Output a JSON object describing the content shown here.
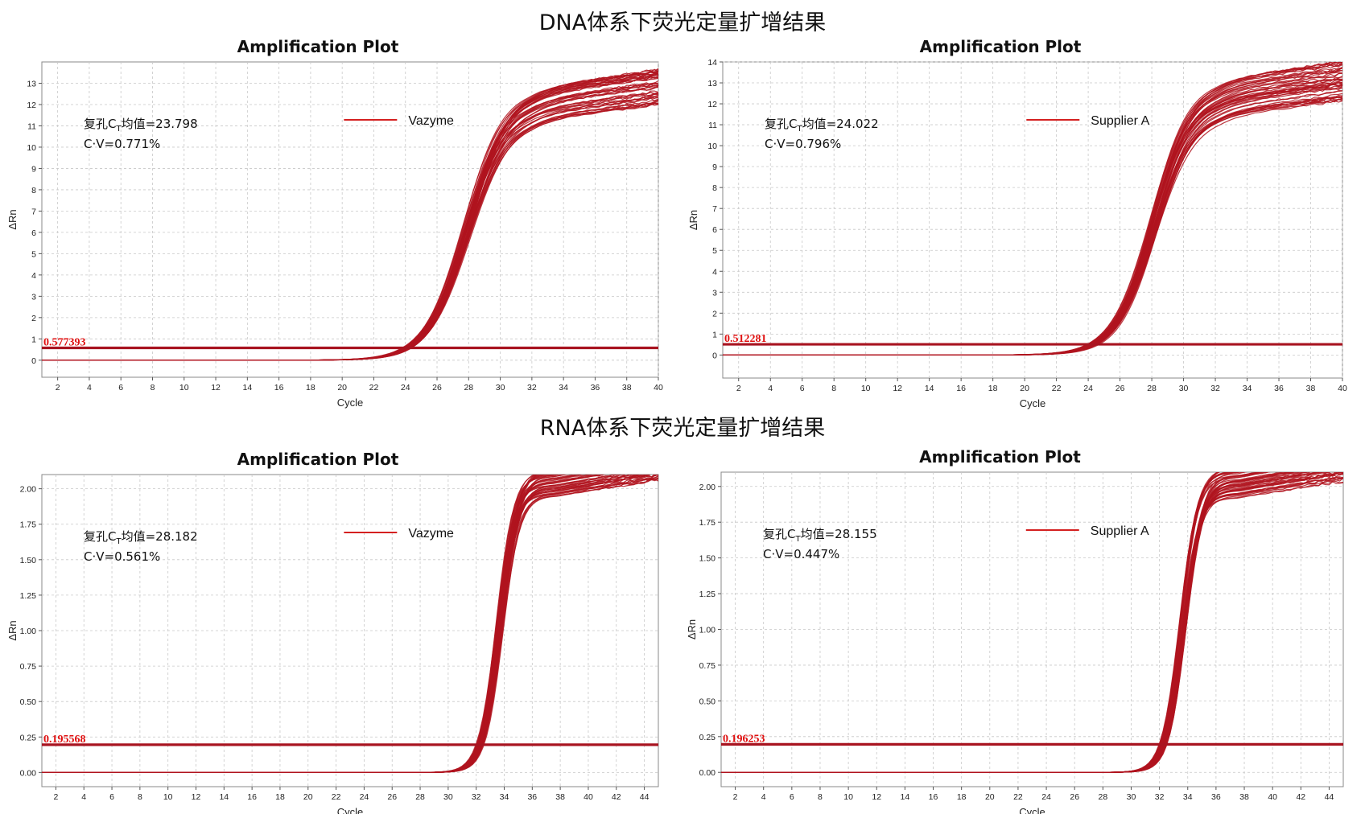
{
  "titles": {
    "dna": "DNA体系下荧光定量扩增结果",
    "rna": "RNA体系下荧光定量扩增结果"
  },
  "colors": {
    "curve": "#b0141e",
    "threshold": "#a81420",
    "threshold_label": "#e01010",
    "grid": "#c8c8c8"
  },
  "chart_data": [
    {
      "type": "line",
      "title": "Amplification Plot",
      "xlabel": "Cycle",
      "ylabel": "ΔRn",
      "xlim": [
        1,
        40
      ],
      "ylim": [
        -0.8,
        14
      ],
      "x_ticks": [
        2,
        4,
        6,
        8,
        10,
        12,
        14,
        16,
        18,
        20,
        22,
        24,
        26,
        28,
        30,
        32,
        34,
        36,
        38,
        40
      ],
      "y_ticks": [
        0,
        1,
        2,
        3,
        4,
        5,
        6,
        7,
        8,
        9,
        10,
        11,
        12,
        13
      ],
      "y_tick_decimals": 0,
      "threshold": 0.577393,
      "threshold_label": "0.577393",
      "annotation": [
        "复孔CT均值=23.798",
        "C·V=0.771%"
      ],
      "annotation_prefix": "复孔C",
      "annotation_sub": "T",
      "annotation_rest": "均值=23.798",
      "cv": "C·V=0.771%",
      "legend": "Vazyme",
      "legend_position": "top-center",
      "grid": true,
      "series": {
        "count": 48,
        "plateau_min": 11.2,
        "plateau_max": 12.9,
        "midpoint_min": 27.6,
        "midpoint_max": 28.1,
        "slope": 1.25,
        "baseline": 0.0
      }
    },
    {
      "type": "line",
      "title": "Amplification Plot",
      "xlabel": "Cycle",
      "ylabel": "ΔRn",
      "xlim": [
        1,
        40
      ],
      "ylim": [
        -1.1,
        14
      ],
      "x_ticks": [
        2,
        4,
        6,
        8,
        10,
        12,
        14,
        16,
        18,
        20,
        22,
        24,
        26,
        28,
        30,
        32,
        34,
        36,
        38,
        40
      ],
      "y_ticks": [
        0,
        1,
        2,
        3,
        4,
        5,
        6,
        7,
        8,
        9,
        10,
        11,
        12,
        13,
        14
      ],
      "y_tick_decimals": 0,
      "threshold": 0.512281,
      "threshold_label": "0.512281",
      "annotation": [
        "复孔CT均值=24.022",
        "C·V=0.796%"
      ],
      "annotation_prefix": "复孔C",
      "annotation_sub": "T",
      "annotation_rest": "均值=24.022",
      "cv": "C·V=0.796%",
      "legend": "Supplier A",
      "legend_position": "top-center",
      "grid": true,
      "series": {
        "count": 48,
        "plateau_min": 11.4,
        "plateau_max": 13.2,
        "midpoint_min": 27.9,
        "midpoint_max": 28.3,
        "slope": 1.2,
        "baseline": 0.0
      }
    },
    {
      "type": "line",
      "title": "Amplification Plot",
      "xlabel": "Cycle",
      "ylabel": "ΔRn",
      "xlim": [
        1,
        45
      ],
      "ylim": [
        -0.1,
        2.1
      ],
      "x_ticks": [
        2,
        4,
        6,
        8,
        10,
        12,
        14,
        16,
        18,
        20,
        22,
        24,
        26,
        28,
        30,
        32,
        34,
        36,
        38,
        40,
        42,
        44
      ],
      "y_ticks": [
        0,
        0.25,
        0.5,
        0.75,
        1,
        1.25,
        1.5,
        1.75,
        2
      ],
      "y_tick_decimals": 2,
      "threshold": 0.195568,
      "threshold_label": "0.195568",
      "annotation": [
        "复孔CT均值=28.182",
        "C·V=0.561%"
      ],
      "annotation_prefix": "复孔C",
      "annotation_sub": "T",
      "annotation_rest": "均值=28.182",
      "cv": "C·V=0.561%",
      "legend": "Vazyme",
      "legend_position": "top-center",
      "grid": true,
      "series": {
        "count": 48,
        "plateau_min": 1.95,
        "plateau_max": 2.15,
        "midpoint_min": 33.4,
        "midpoint_max": 33.9,
        "slope": 0.62,
        "baseline": 0.0
      }
    },
    {
      "type": "line",
      "title": "Amplification Plot",
      "xlabel": "Cycle",
      "ylabel": "ΔRn",
      "xlim": [
        1,
        45
      ],
      "ylim": [
        -0.1,
        2.1
      ],
      "x_ticks": [
        2,
        4,
        6,
        8,
        10,
        12,
        14,
        16,
        18,
        20,
        22,
        24,
        26,
        28,
        30,
        32,
        34,
        36,
        38,
        40,
        42,
        44
      ],
      "y_ticks": [
        0,
        0.25,
        0.5,
        0.75,
        1,
        1.25,
        1.5,
        1.75,
        2
      ],
      "y_tick_decimals": 2,
      "threshold": 0.196253,
      "threshold_label": "0.196253",
      "annotation": [
        "复孔CT均值=28.155",
        "C·V=0.447%"
      ],
      "annotation_prefix": "复孔C",
      "annotation_sub": "T",
      "annotation_rest": "均值=28.155",
      "cv": "C·V=0.447%",
      "legend": "Supplier A",
      "legend_position": "top-center",
      "grid": true,
      "series": {
        "count": 48,
        "plateau_min": 1.92,
        "plateau_max": 2.14,
        "midpoint_min": 33.4,
        "midpoint_max": 33.9,
        "slope": 0.62,
        "baseline": 0.0
      }
    }
  ]
}
